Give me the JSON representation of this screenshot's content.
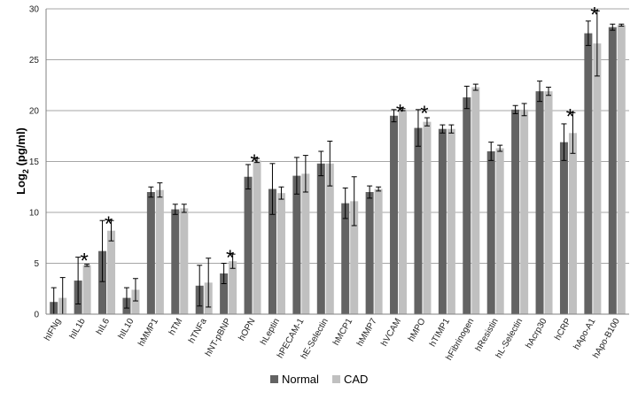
{
  "chart_data": {
    "type": "bar",
    "ylabel": "Log",
    "ylabel_sub": "2",
    "ylabel_suffix": " (pg/ml)",
    "ylim": [
      0,
      30
    ],
    "yticks": [
      "0",
      "5",
      "10",
      "15",
      "20",
      "25",
      "30"
    ],
    "grid": true,
    "legend_position": "bottom",
    "categories": [
      "hIFNg",
      "hIL1b",
      "hIL6",
      "hIL10",
      "hMMP1",
      "hTM",
      "hTNFa",
      "hNT-pBNP",
      "hOPN",
      "hLeptin",
      "hPECAM-1",
      "hE-Selectin",
      "hMCP1",
      "hMMP7",
      "hVCAM",
      "hMPO",
      "hTIMP1",
      "hFibrinogen",
      "hResistin",
      "hL-Selectin",
      "hAcrp30",
      "hCRP",
      "hApo-A1",
      "hApo-B100"
    ],
    "series": [
      {
        "name": "Normal",
        "color": "#636363",
        "values": [
          1.2,
          3.3,
          6.2,
          1.6,
          12.0,
          10.3,
          2.8,
          4.0,
          13.5,
          12.3,
          13.6,
          14.8,
          10.9,
          12.0,
          19.5,
          18.3,
          18.2,
          21.3,
          16.0,
          20.1,
          21.9,
          16.9,
          27.6,
          28.2
        ],
        "errors": [
          1.4,
          2.3,
          3.0,
          1.0,
          0.5,
          0.5,
          2.0,
          1.0,
          1.2,
          2.5,
          1.8,
          1.2,
          1.5,
          0.6,
          0.6,
          1.8,
          0.4,
          1.1,
          0.9,
          0.4,
          1.0,
          1.8,
          1.2,
          0.3
        ]
      },
      {
        "name": "CAD",
        "color": "#c0c0c0",
        "values": [
          1.6,
          4.8,
          8.2,
          2.4,
          12.2,
          10.4,
          3.1,
          5.2,
          15.1,
          11.9,
          13.8,
          14.8,
          11.1,
          12.3,
          20.1,
          18.9,
          18.2,
          22.3,
          16.3,
          20.1,
          21.9,
          17.8,
          26.6,
          28.4
        ],
        "errors": [
          2.0,
          0.1,
          1.0,
          1.1,
          0.7,
          0.4,
          2.4,
          0.7,
          0.2,
          0.6,
          1.8,
          2.2,
          2.4,
          0.2,
          0.1,
          0.4,
          0.4,
          0.3,
          0.3,
          0.6,
          0.4,
          2.0,
          3.2,
          0.1
        ]
      }
    ],
    "significant": [
      false,
      true,
      true,
      false,
      false,
      false,
      false,
      true,
      true,
      false,
      false,
      false,
      false,
      false,
      true,
      true,
      false,
      false,
      false,
      false,
      false,
      true,
      true,
      false
    ],
    "significance_marker": "*"
  }
}
